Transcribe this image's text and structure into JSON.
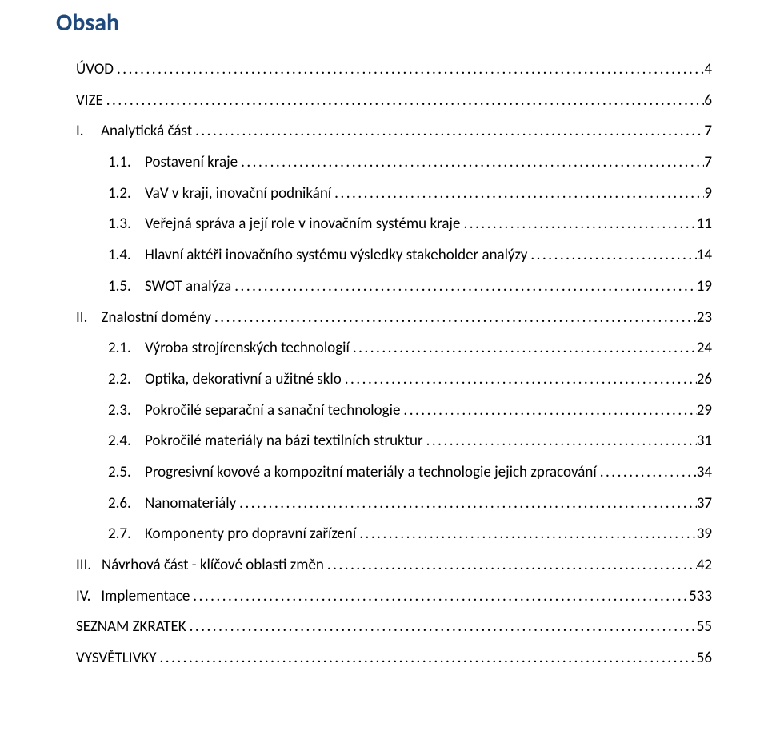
{
  "title": "Obsah",
  "colors": {
    "title_color": "#1f497d",
    "text_color": "#000000",
    "background": "#ffffff"
  },
  "typography": {
    "title_fontsize": 30,
    "title_fontweight": 700,
    "entry_fontsize": 19,
    "font_family": "Calibri"
  },
  "leader_char": ".",
  "entries": [
    {
      "indent": 0,
      "label": "ÚVOD",
      "page": "4"
    },
    {
      "indent": 0,
      "label": "VIZE",
      "page": "6"
    },
    {
      "indent": 0,
      "label": "I.     Analytická část",
      "page": "7"
    },
    {
      "indent": 2,
      "label": "1.1.    Postavení kraje",
      "page": "7"
    },
    {
      "indent": 2,
      "label": "1.2.    VaV v kraji, inovační podnikání",
      "page": "9"
    },
    {
      "indent": 2,
      "label": "1.3.    Veřejná správa a její role v inovačním systému kraje",
      "page": "11"
    },
    {
      "indent": 2,
      "label": "1.4.    Hlavní aktéři inovačního systému výsledky stakeholder analýzy",
      "page": "14"
    },
    {
      "indent": 2,
      "label": "1.5.    SWOT analýza",
      "page": "19"
    },
    {
      "indent": 0,
      "label": "II.    Znalostní domény",
      "page": "23"
    },
    {
      "indent": 2,
      "label": "2.1.    Výroba strojírenských technologií",
      "page": "24"
    },
    {
      "indent": 2,
      "label": "2.2.    Optika, dekorativní a užitné sklo",
      "page": "26"
    },
    {
      "indent": 2,
      "label": "2.3.    Pokročilé separační a sanační technologie",
      "page": "29"
    },
    {
      "indent": 2,
      "label": "2.4.    Pokročilé materiály na bázi textilních struktur",
      "page": "31"
    },
    {
      "indent": 2,
      "label": "2.5.    Progresivní kovové a kompozitní materiály a technologie jejich zpracování",
      "page": "34"
    },
    {
      "indent": 2,
      "label": "2.6.    Nanomateriály",
      "page": "37"
    },
    {
      "indent": 2,
      "label": "2.7.    Komponenty pro dopravní zařízení",
      "page": "39"
    },
    {
      "indent": 0,
      "label": "III.   Návrhová část - klíčové oblasti změn",
      "page": "42"
    },
    {
      "indent": 0,
      "label": "IV.   Implementace",
      "page": "533"
    },
    {
      "indent": 0,
      "label": "SEZNAM ZKRATEK",
      "page": "55"
    },
    {
      "indent": 0,
      "label": "VYSVĚTLIVKY",
      "page": "56"
    }
  ]
}
